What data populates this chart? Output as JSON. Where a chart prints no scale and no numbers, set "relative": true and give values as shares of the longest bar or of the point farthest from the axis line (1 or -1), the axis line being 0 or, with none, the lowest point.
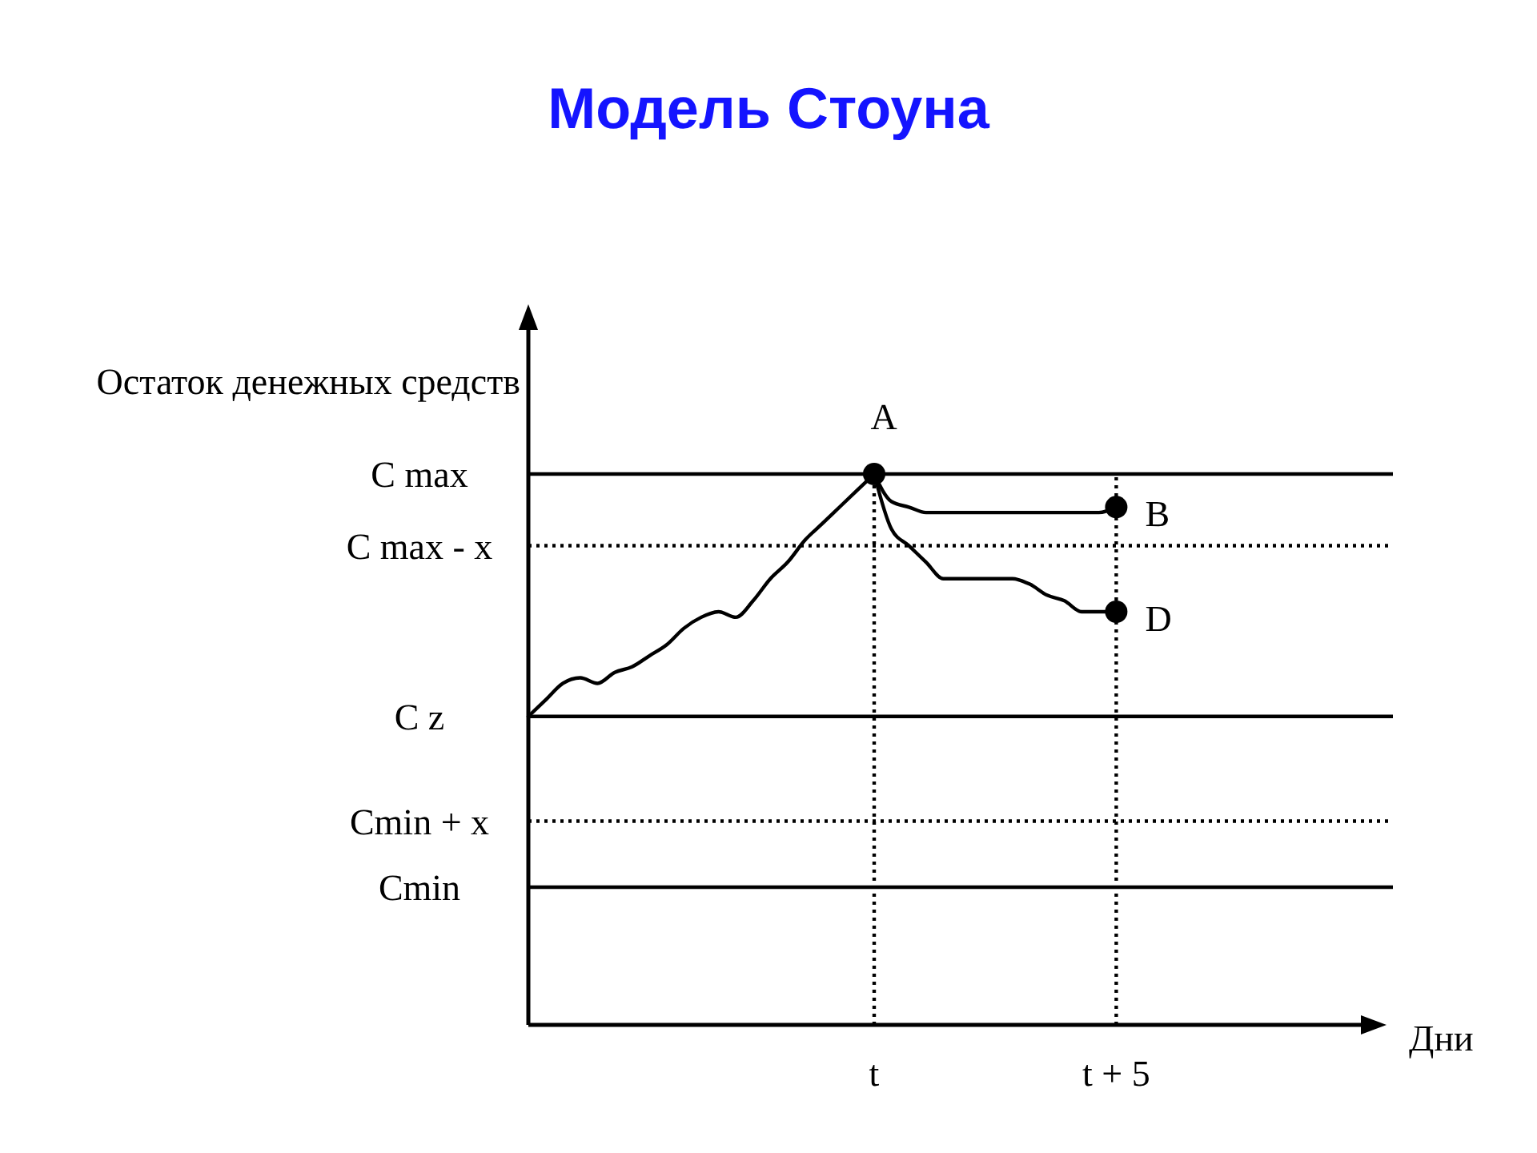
{
  "chart_data": {
    "type": "line",
    "title": "Модель Стоуна",
    "xlabel": "Дни",
    "ylabel": "Остаток денежных средств",
    "relative": true,
    "categories": [
      null,
      null,
      null,
      null,
      null,
      null,
      null,
      null,
      null,
      null,
      null,
      null,
      null,
      null,
      null,
      null,
      null,
      null,
      null,
      null,
      "t",
      null,
      null,
      null,
      null,
      null,
      null,
      null,
      null,
      null,
      null,
      null,
      null,
      null,
      "t + 5",
      null,
      null,
      null,
      null,
      null,
      null,
      null,
      null,
      null,
      null,
      null,
      null,
      null,
      null,
      null,
      null
    ],
    "series": [
      {
        "color": "#000000",
        "values": [
          0.56,
          0.59,
          0.62,
          0.63,
          0.62,
          0.64,
          0.65,
          0.67,
          0.69,
          0.72,
          0.74,
          0.75,
          0.74,
          0.77,
          0.81,
          0.84,
          0.88,
          0.91,
          0.94,
          0.97,
          1,
          null,
          null,
          null,
          null,
          null,
          null,
          null,
          null,
          null,
          null,
          null,
          null,
          null,
          null,
          null,
          null,
          null,
          null,
          null,
          null,
          null,
          null,
          null,
          null,
          null,
          null,
          null,
          null,
          null,
          null
        ]
      },
      {
        "color": "#000000",
        "values": [
          null,
          null,
          null,
          null,
          null,
          null,
          null,
          null,
          null,
          null,
          null,
          null,
          null,
          null,
          null,
          null,
          null,
          null,
          null,
          null,
          1,
          0.95,
          0.94,
          0.93,
          0.93,
          0.93,
          0.93,
          0.93,
          0.93,
          0.93,
          0.93,
          0.93,
          0.93,
          0.93,
          0.94,
          null,
          null,
          null,
          null,
          null,
          null,
          null,
          null,
          null,
          null,
          null,
          null,
          null,
          null,
          null,
          null
        ]
      },
      {
        "color": "#000000",
        "values": [
          null,
          null,
          null,
          null,
          null,
          null,
          null,
          null,
          null,
          null,
          null,
          null,
          null,
          null,
          null,
          null,
          null,
          null,
          null,
          null,
          1,
          0.9,
          0.87,
          0.84,
          0.81,
          0.81,
          0.81,
          0.81,
          0.81,
          0.8,
          0.78,
          0.77,
          0.75,
          0.75,
          0.75,
          null,
          null,
          null,
          null,
          null,
          null,
          null,
          null,
          null,
          null,
          null,
          null,
          null,
          null,
          null,
          null
        ]
      },
      {
        "type": "scatter",
        "color": "#000000",
        "marker": "circle",
        "values": [
          null,
          null,
          null,
          null,
          null,
          null,
          null,
          null,
          null,
          null,
          null,
          null,
          null,
          null,
          null,
          null,
          null,
          null,
          null,
          null,
          1,
          null,
          null,
          null,
          null,
          null,
          null,
          null,
          null,
          null,
          null,
          null,
          null,
          null,
          0.94,
          null,
          null,
          null,
          null,
          null,
          null,
          null,
          null,
          null,
          null,
          null,
          null,
          null,
          null,
          null,
          null
        ]
      },
      {
        "type": "scatter",
        "color": "#000000",
        "marker": "circle",
        "values": [
          null,
          null,
          null,
          null,
          null,
          null,
          null,
          null,
          null,
          null,
          null,
          null,
          null,
          null,
          null,
          null,
          null,
          null,
          null,
          null,
          null,
          null,
          null,
          null,
          null,
          null,
          null,
          null,
          null,
          null,
          null,
          null,
          null,
          null,
          0.75,
          null,
          null,
          null,
          null,
          null,
          null,
          null,
          null,
          null,
          null,
          null,
          null,
          null,
          null,
          null,
          null
        ]
      }
    ],
    "ref_lines": [
      {
        "axis": "y",
        "value": 1,
        "label": "C max",
        "line_style": "solid"
      },
      {
        "axis": "y",
        "value": 0.87,
        "label": "C max - x",
        "line_style": "dotted"
      },
      {
        "axis": "y",
        "value": 0.56,
        "label": "C z",
        "line_style": "solid"
      },
      {
        "axis": "y",
        "value": 0.37,
        "label": "Cmin + x",
        "line_style": "dotted"
      },
      {
        "axis": "y",
        "value": 0.25,
        "label": "Cmin",
        "line_style": "solid"
      },
      {
        "axis": "x",
        "value": "t",
        "line_style": "dotted"
      },
      {
        "axis": "x",
        "value": "t + 5",
        "line_style": "dotted"
      }
    ],
    "annotations": [
      {
        "text": "A",
        "x": "t",
        "y": 1
      },
      {
        "text": "B",
        "x": "t + 5",
        "y": 0.94
      },
      {
        "text": "D",
        "x": "t + 5",
        "y": 0.75
      }
    ],
    "line_style": "solid"
  }
}
